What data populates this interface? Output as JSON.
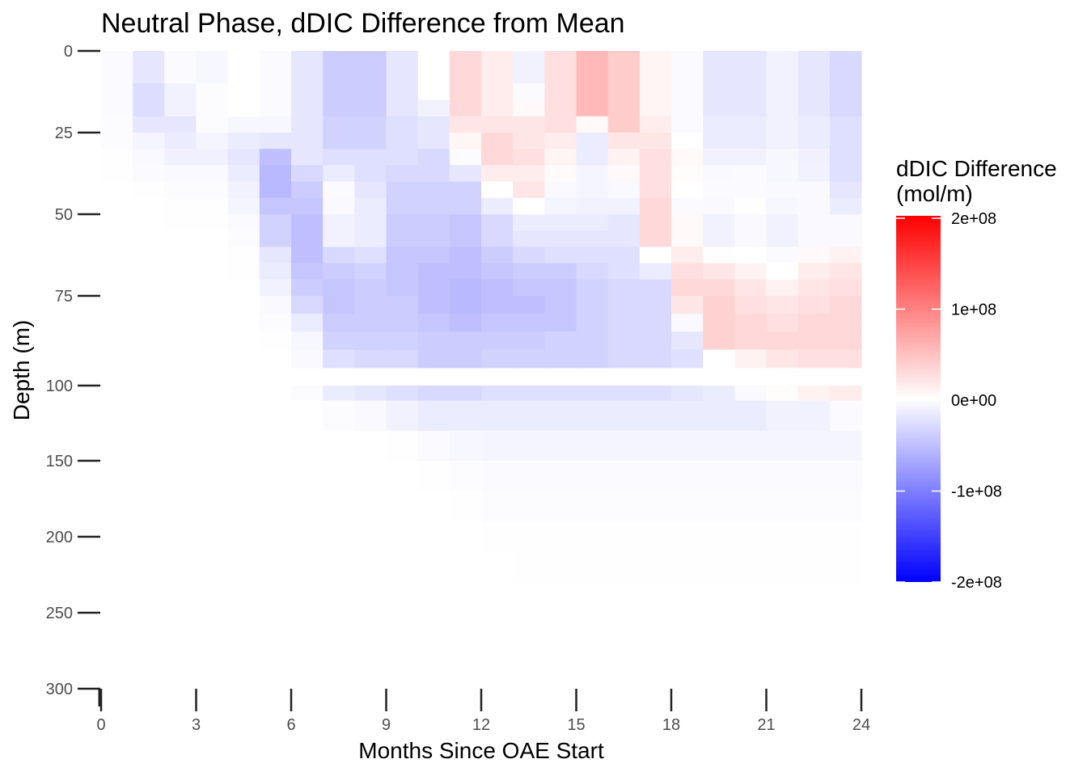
{
  "chart_data": {
    "type": "heatmap",
    "title": "Neutral Phase, dDIC Difference from Mean",
    "xlabel": "Months Since OAE Start",
    "ylabel": "Depth (m)",
    "xlim": [
      0,
      24
    ],
    "x_ticks": [
      0,
      3,
      6,
      9,
      12,
      15,
      18,
      21,
      24
    ],
    "y_ticks": [
      0,
      25,
      50,
      75,
      100,
      150,
      200,
      250,
      300
    ],
    "y_axis": "depth, increasing downward, irregular spacing",
    "color_scale": {
      "title_line1": "dDIC Difference",
      "title_line2": "(mol/m)",
      "min": -200000000,
      "max": 200000000,
      "low_color": "#0000ff",
      "mid_color": "#ffffff",
      "high_color": "#ff0000",
      "tick_values": [
        200000000,
        100000000,
        0,
        -100000000,
        -200000000
      ],
      "tick_labels": [
        "2e+08",
        "1e+08",
        "0e+00",
        "-1e+08",
        "-2e+08"
      ]
    },
    "months": [
      0,
      1,
      2,
      3,
      4,
      5,
      6,
      7,
      8,
      9,
      10,
      11,
      12,
      13,
      14,
      15,
      16,
      17,
      18,
      19,
      20,
      21,
      22,
      23
    ],
    "depth_bins": [
      [
        0,
        5
      ],
      [
        5,
        10
      ],
      [
        10,
        15
      ],
      [
        15,
        20
      ],
      [
        20,
        25
      ],
      [
        25,
        30
      ],
      [
        30,
        35
      ],
      [
        35,
        40
      ],
      [
        40,
        45
      ],
      [
        45,
        50
      ],
      [
        50,
        55
      ],
      [
        55,
        60
      ],
      [
        60,
        65
      ],
      [
        65,
        70
      ],
      [
        70,
        75
      ],
      [
        75,
        80
      ],
      [
        80,
        85
      ],
      [
        85,
        90
      ],
      [
        90,
        95
      ],
      [
        100,
        110
      ],
      [
        110,
        130
      ],
      [
        130,
        150
      ],
      [
        150,
        170
      ],
      [
        170,
        190
      ],
      [
        190,
        210
      ],
      [
        210,
        230
      ],
      [
        230,
        250
      ],
      [
        250,
        270
      ],
      [
        270,
        290
      ],
      [
        290,
        300
      ]
    ],
    "values_1e7": [
      [
        -0.3,
        -2.0,
        -0.3,
        -0.6,
        0.0,
        -0.3,
        -2.0,
        -4.0,
        -4.0,
        -2.0,
        0.0,
        3.0,
        1.5,
        -1.0,
        2.5,
        5.5,
        4.0,
        0.8,
        -0.3,
        -2.0,
        -2.0,
        -1.0,
        -2.0,
        -3.0
      ],
      [
        -0.3,
        -2.0,
        -0.3,
        -0.6,
        0.0,
        -0.3,
        -2.0,
        -4.0,
        -4.0,
        -2.0,
        0.0,
        3.0,
        1.5,
        -1.0,
        2.5,
        5.5,
        4.0,
        0.8,
        -0.3,
        -2.0,
        -2.0,
        -1.0,
        -2.0,
        -3.0
      ],
      [
        -0.3,
        -2.7,
        -1.0,
        -0.2,
        0.0,
        -0.3,
        -2.0,
        -4.0,
        -4.0,
        -2.0,
        0.0,
        3.0,
        1.5,
        -0.3,
        2.5,
        5.5,
        4.0,
        0.8,
        -0.3,
        -2.0,
        -2.0,
        -1.0,
        -2.0,
        -3.0
      ],
      [
        -0.3,
        -2.7,
        -1.0,
        -0.2,
        0.0,
        -0.3,
        -2.0,
        -4.0,
        -4.0,
        -2.0,
        -1.0,
        3.0,
        1.5,
        0.5,
        2.5,
        5.5,
        4.0,
        0.8,
        -0.3,
        -2.0,
        -2.0,
        -1.0,
        -2.0,
        -3.0
      ],
      [
        -0.2,
        -2.0,
        -2.0,
        -0.2,
        -0.6,
        -0.6,
        -2.0,
        -3.5,
        -3.5,
        -2.5,
        -2.0,
        2.0,
        2.0,
        2.0,
        2.5,
        0.5,
        4.0,
        1.5,
        -0.3,
        -1.5,
        -1.5,
        -1.0,
        -1.5,
        -2.5
      ],
      [
        -0.2,
        -0.8,
        -1.5,
        -0.8,
        -1.5,
        -2.0,
        -2.0,
        -3.5,
        -3.5,
        -2.5,
        -2.0,
        0.7,
        3.0,
        2.0,
        1.5,
        -1.5,
        2.0,
        2.0,
        0.0,
        -1.5,
        -1.5,
        -1.0,
        -1.5,
        -2.5
      ],
      [
        -0.1,
        -0.5,
        -1.2,
        -1.2,
        -2.0,
        -5.0,
        -2.0,
        -2.5,
        -2.5,
        -2.5,
        -3.0,
        -0.2,
        3.0,
        2.5,
        0.8,
        -1.5,
        1.0,
        2.5,
        0.5,
        -1.0,
        -1.0,
        -0.6,
        -1.2,
        -2.5
      ],
      [
        -0.1,
        -0.3,
        -0.5,
        -0.5,
        -1.5,
        -5.5,
        -3.0,
        -1.5,
        -2.5,
        -3.0,
        -3.0,
        -2.0,
        1.5,
        1.5,
        0.3,
        -0.8,
        0.5,
        2.5,
        0.2,
        -0.5,
        -0.3,
        -0.6,
        -1.0,
        -2.5
      ],
      [
        0.0,
        -0.1,
        -0.2,
        -0.2,
        -1.0,
        -5.5,
        -4.0,
        -0.3,
        -2.0,
        -3.5,
        -3.5,
        -3.5,
        0.0,
        2.0,
        -0.5,
        -0.8,
        -0.5,
        2.5,
        0.0,
        -0.3,
        -0.3,
        -0.5,
        -0.5,
        -2.0
      ],
      [
        0.0,
        0.0,
        -0.1,
        -0.1,
        -0.8,
        -4.5,
        -4.5,
        -0.5,
        -1.5,
        -3.5,
        -3.5,
        -3.5,
        -1.5,
        0.0,
        -0.8,
        -1.0,
        -1.0,
        3.0,
        -0.3,
        -0.5,
        -0.1,
        -0.6,
        -0.5,
        -1.5
      ],
      [
        0.0,
        0.0,
        -0.1,
        -0.1,
        -0.3,
        -3.5,
        -5.0,
        -1.0,
        -1.5,
        -4.0,
        -4.0,
        -4.5,
        -3.0,
        -1.5,
        -1.5,
        -1.5,
        -2.0,
        3.0,
        0.5,
        -1.0,
        -0.5,
        -1.0,
        -0.5,
        -0.5
      ],
      [
        0.0,
        0.0,
        0.0,
        0.0,
        -0.2,
        -3.5,
        -5.0,
        -1.0,
        -1.5,
        -4.0,
        -4.0,
        -4.5,
        -3.0,
        -2.0,
        -2.0,
        -2.0,
        -2.0,
        3.0,
        0.5,
        -1.0,
        -0.5,
        -1.0,
        -0.5,
        -0.5
      ],
      [
        0.0,
        0.0,
        0.0,
        0.0,
        -0.1,
        -2.0,
        -5.0,
        -3.0,
        -2.5,
        -4.5,
        -4.5,
        -5.0,
        -4.0,
        -3.0,
        -2.5,
        -2.5,
        -2.5,
        0.0,
        1.5,
        0.1,
        0.0,
        -0.3,
        0.5,
        1.0
      ],
      [
        0.0,
        0.0,
        0.0,
        0.0,
        -0.1,
        -1.5,
        -4.5,
        -4.0,
        -3.5,
        -4.5,
        -5.0,
        -5.0,
        -4.5,
        -4.0,
        -4.0,
        -3.0,
        -2.5,
        -1.5,
        2.5,
        2.0,
        1.0,
        0.0,
        1.5,
        2.0
      ],
      [
        0.0,
        0.0,
        0.0,
        0.0,
        0.0,
        -1.0,
        -4.0,
        -4.5,
        -4.0,
        -4.5,
        -5.0,
        -5.5,
        -5.0,
        -4.5,
        -4.5,
        -3.5,
        -3.0,
        -3.0,
        3.0,
        3.0,
        2.0,
        1.0,
        2.0,
        2.5
      ],
      [
        0.0,
        0.0,
        0.0,
        0.0,
        0.0,
        -0.5,
        -3.0,
        -4.5,
        -4.0,
        -4.0,
        -5.0,
        -5.5,
        -5.0,
        -5.0,
        -4.5,
        -3.5,
        -3.0,
        -3.0,
        2.0,
        3.5,
        2.5,
        2.0,
        2.5,
        3.0
      ],
      [
        0.0,
        0.0,
        0.0,
        0.0,
        0.0,
        -0.2,
        -1.5,
        -4.0,
        -4.0,
        -4.0,
        -4.5,
        -5.0,
        -4.5,
        -4.5,
        -4.5,
        -3.5,
        -3.0,
        -3.0,
        -0.5,
        3.5,
        3.0,
        2.5,
        3.0,
        3.0
      ],
      [
        0.0,
        0.0,
        0.0,
        0.0,
        0.0,
        -0.1,
        -0.6,
        -3.5,
        -3.5,
        -3.5,
        -4.0,
        -4.0,
        -4.0,
        -4.0,
        -3.5,
        -3.5,
        -3.0,
        -3.0,
        -2.0,
        3.5,
        3.0,
        3.0,
        3.0,
        3.0
      ],
      [
        0.0,
        0.0,
        0.0,
        0.0,
        0.0,
        0.0,
        -0.5,
        -2.5,
        -3.0,
        -3.0,
        -4.0,
        -4.0,
        -3.5,
        -3.5,
        -3.5,
        -3.5,
        -3.0,
        -3.0,
        -2.5,
        0.0,
        1.0,
        2.0,
        2.5,
        2.5
      ],
      [
        0.0,
        0.0,
        0.0,
        0.0,
        0.0,
        0.0,
        -0.2,
        -1.5,
        -2.0,
        -2.5,
        -3.0,
        -3.0,
        -2.5,
        -2.5,
        -2.5,
        -2.5,
        -2.5,
        -2.5,
        -2.0,
        -1.5,
        -0.5,
        0.2,
        1.0,
        1.5
      ],
      [
        0.0,
        0.0,
        0.0,
        0.0,
        0.0,
        0.0,
        0.0,
        -0.2,
        -0.5,
        -1.0,
        -1.5,
        -1.5,
        -1.5,
        -1.5,
        -1.5,
        -1.5,
        -1.5,
        -1.5,
        -1.5,
        -1.5,
        -1.5,
        -1.0,
        -1.0,
        -0.3
      ],
      [
        0.0,
        0.0,
        0.0,
        0.0,
        0.0,
        0.0,
        0.0,
        0.0,
        0.0,
        -0.1,
        -0.4,
        -0.6,
        -0.8,
        -0.8,
        -0.8,
        -0.8,
        -0.8,
        -0.8,
        -0.8,
        -0.8,
        -0.8,
        -0.8,
        -0.8,
        -0.8
      ],
      [
        0.0,
        0.0,
        0.0,
        0.0,
        0.0,
        0.0,
        0.0,
        0.0,
        0.0,
        0.0,
        -0.1,
        -0.2,
        -0.3,
        -0.3,
        -0.3,
        -0.3,
        -0.3,
        -0.3,
        -0.3,
        -0.3,
        -0.3,
        -0.3,
        -0.3,
        -0.3
      ],
      [
        0.0,
        0.0,
        0.0,
        0.0,
        0.0,
        0.0,
        0.0,
        0.0,
        0.0,
        0.0,
        0.0,
        -0.1,
        -0.2,
        -0.2,
        -0.2,
        -0.2,
        -0.2,
        -0.2,
        -0.2,
        -0.2,
        -0.2,
        -0.2,
        -0.2,
        -0.2
      ],
      [
        0.0,
        0.0,
        0.0,
        0.0,
        0.0,
        0.0,
        0.0,
        0.0,
        0.0,
        0.0,
        0.0,
        0.0,
        -0.1,
        -0.1,
        -0.1,
        -0.1,
        -0.1,
        -0.1,
        -0.1,
        -0.1,
        -0.1,
        -0.1,
        -0.1,
        -0.1
      ],
      [
        0.0,
        0.0,
        0.0,
        0.0,
        0.0,
        0.0,
        0.0,
        0.0,
        0.0,
        0.0,
        0.0,
        0.0,
        0.0,
        -0.05,
        -0.05,
        -0.05,
        -0.05,
        -0.05,
        -0.05,
        -0.05,
        -0.05,
        -0.05,
        -0.05,
        -0.05
      ],
      [
        0.0,
        0.0,
        0.0,
        0.0,
        0.0,
        0.0,
        0.0,
        0.0,
        0.0,
        0.0,
        0.0,
        0.0,
        0.0,
        0.0,
        0.0,
        0.0,
        0.0,
        0.0,
        0.0,
        0.0,
        0.0,
        0.0,
        0.0,
        0.0
      ],
      [
        0.0,
        0.0,
        0.0,
        0.0,
        0.0,
        0.0,
        0.0,
        0.0,
        0.0,
        0.0,
        0.0,
        0.0,
        0.0,
        0.0,
        0.0,
        0.0,
        0.0,
        0.0,
        0.0,
        0.0,
        0.0,
        0.0,
        0.0,
        0.0
      ],
      [
        0.0,
        0.0,
        0.0,
        0.0,
        0.0,
        0.0,
        0.0,
        0.0,
        0.0,
        0.0,
        0.0,
        0.0,
        0.0,
        0.0,
        0.0,
        0.0,
        0.0,
        0.0,
        0.0,
        0.0,
        0.0,
        0.0,
        0.0,
        0.0
      ],
      [
        0.0,
        0.0,
        0.0,
        0.0,
        0.0,
        0.0,
        0.0,
        0.0,
        0.0,
        0.0,
        0.0,
        0.0,
        0.0,
        0.0,
        0.0,
        0.0,
        0.0,
        0.0,
        0.0,
        0.0,
        0.0,
        0.0,
        0.0,
        0.0
      ]
    ]
  }
}
